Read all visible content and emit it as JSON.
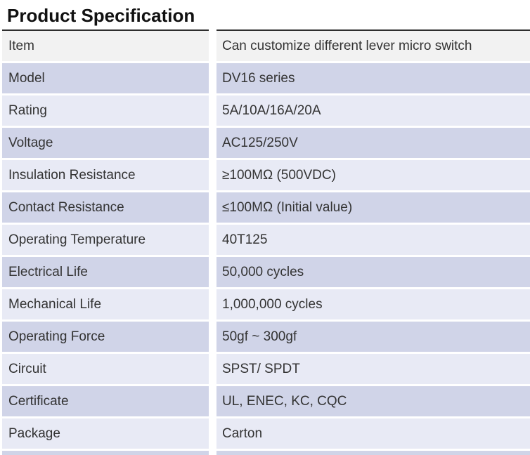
{
  "page": {
    "title": "Product Specification"
  },
  "colors": {
    "header_row_bg": "#f2f2f2",
    "dark_row_bg": "#d0d4e8",
    "light_row_bg": "#e8eaf5",
    "top_rule": "#2e2e2e",
    "separator": "#ffffff",
    "text": "#333333"
  },
  "table": {
    "rows": [
      {
        "label": "Item",
        "value": "Can customize different lever micro switch"
      },
      {
        "label": "Model",
        "value": "DV16 series"
      },
      {
        "label": "Rating",
        "value": "5A/10A/16A/20A"
      },
      {
        "label": "Voltage",
        "value": "AC125/250V"
      },
      {
        "label": "Insulation Resistance",
        "value": "≥100MΩ (500VDC)"
      },
      {
        "label": "Contact Resistance",
        "value": "≤100MΩ (Initial value)"
      },
      {
        "label": "Operating Temperature",
        "value": "40T125"
      },
      {
        "label": "Electrical Life",
        "value": "50,000 cycles"
      },
      {
        "label": "Mechanical Life",
        "value": "1,000,000 cycles"
      },
      {
        "label": "Operating Force",
        "value": "50gf ~ 300gf"
      },
      {
        "label": "Circuit",
        "value": "SPST/ SPDT"
      },
      {
        "label": "Certificate",
        "value": "UL, ENEC, KC, CQC"
      },
      {
        "label": "Package",
        "value": "Carton"
      }
    ]
  }
}
